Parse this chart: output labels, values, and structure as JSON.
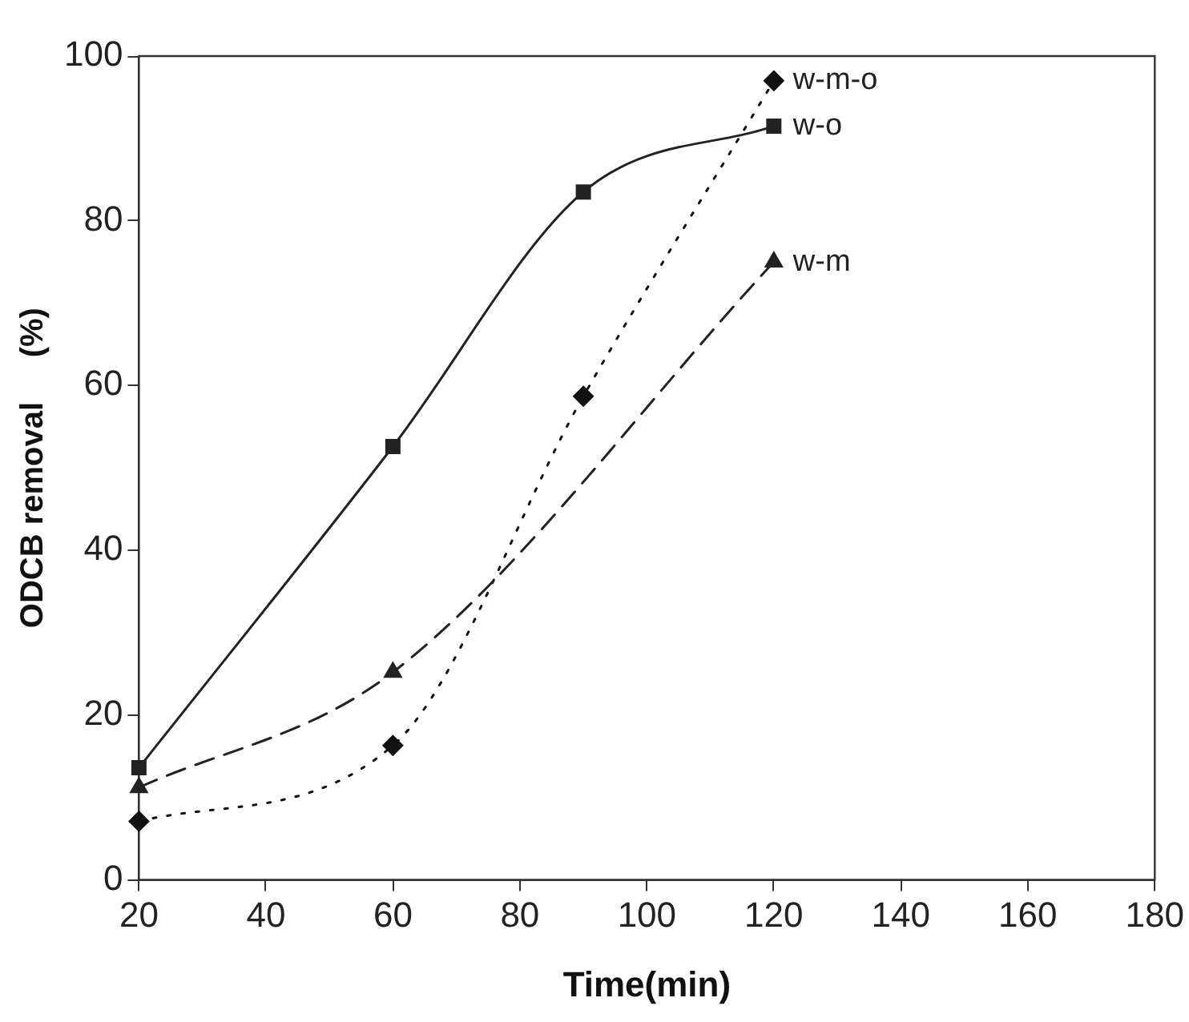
{
  "chart_data": {
    "type": "line",
    "xlabel": "Time(min)",
    "ylabel": "ODCB removal     (%)",
    "xlim": [
      20,
      180
    ],
    "xticks": [
      20,
      40,
      60,
      80,
      100,
      120,
      140,
      160,
      180
    ],
    "ylim": [
      0,
      100
    ],
    "yticks": [
      0,
      20,
      40,
      60,
      80,
      100
    ],
    "grid": false,
    "legend": false,
    "series": [
      {
        "name": "w-o",
        "color": "#222222",
        "x": [
          20,
          60,
          90,
          120
        ],
        "values": [
          13.6,
          52.6,
          83.5,
          91.5
        ],
        "marker": "square",
        "line_style": "solid"
      },
      {
        "name": "w-m",
        "color": "#222222",
        "x": [
          20,
          60,
          120
        ],
        "values": [
          11.2,
          25.2,
          75
        ],
        "marker": "triangle",
        "line_style": "dashed"
      },
      {
        "name": "w-m-o",
        "color": "#111111",
        "x": [
          20,
          60,
          90,
          120
        ],
        "values": [
          7.1,
          16.3,
          58.7,
          97
        ],
        "marker": "diamond",
        "line_style": "dotted"
      }
    ]
  }
}
